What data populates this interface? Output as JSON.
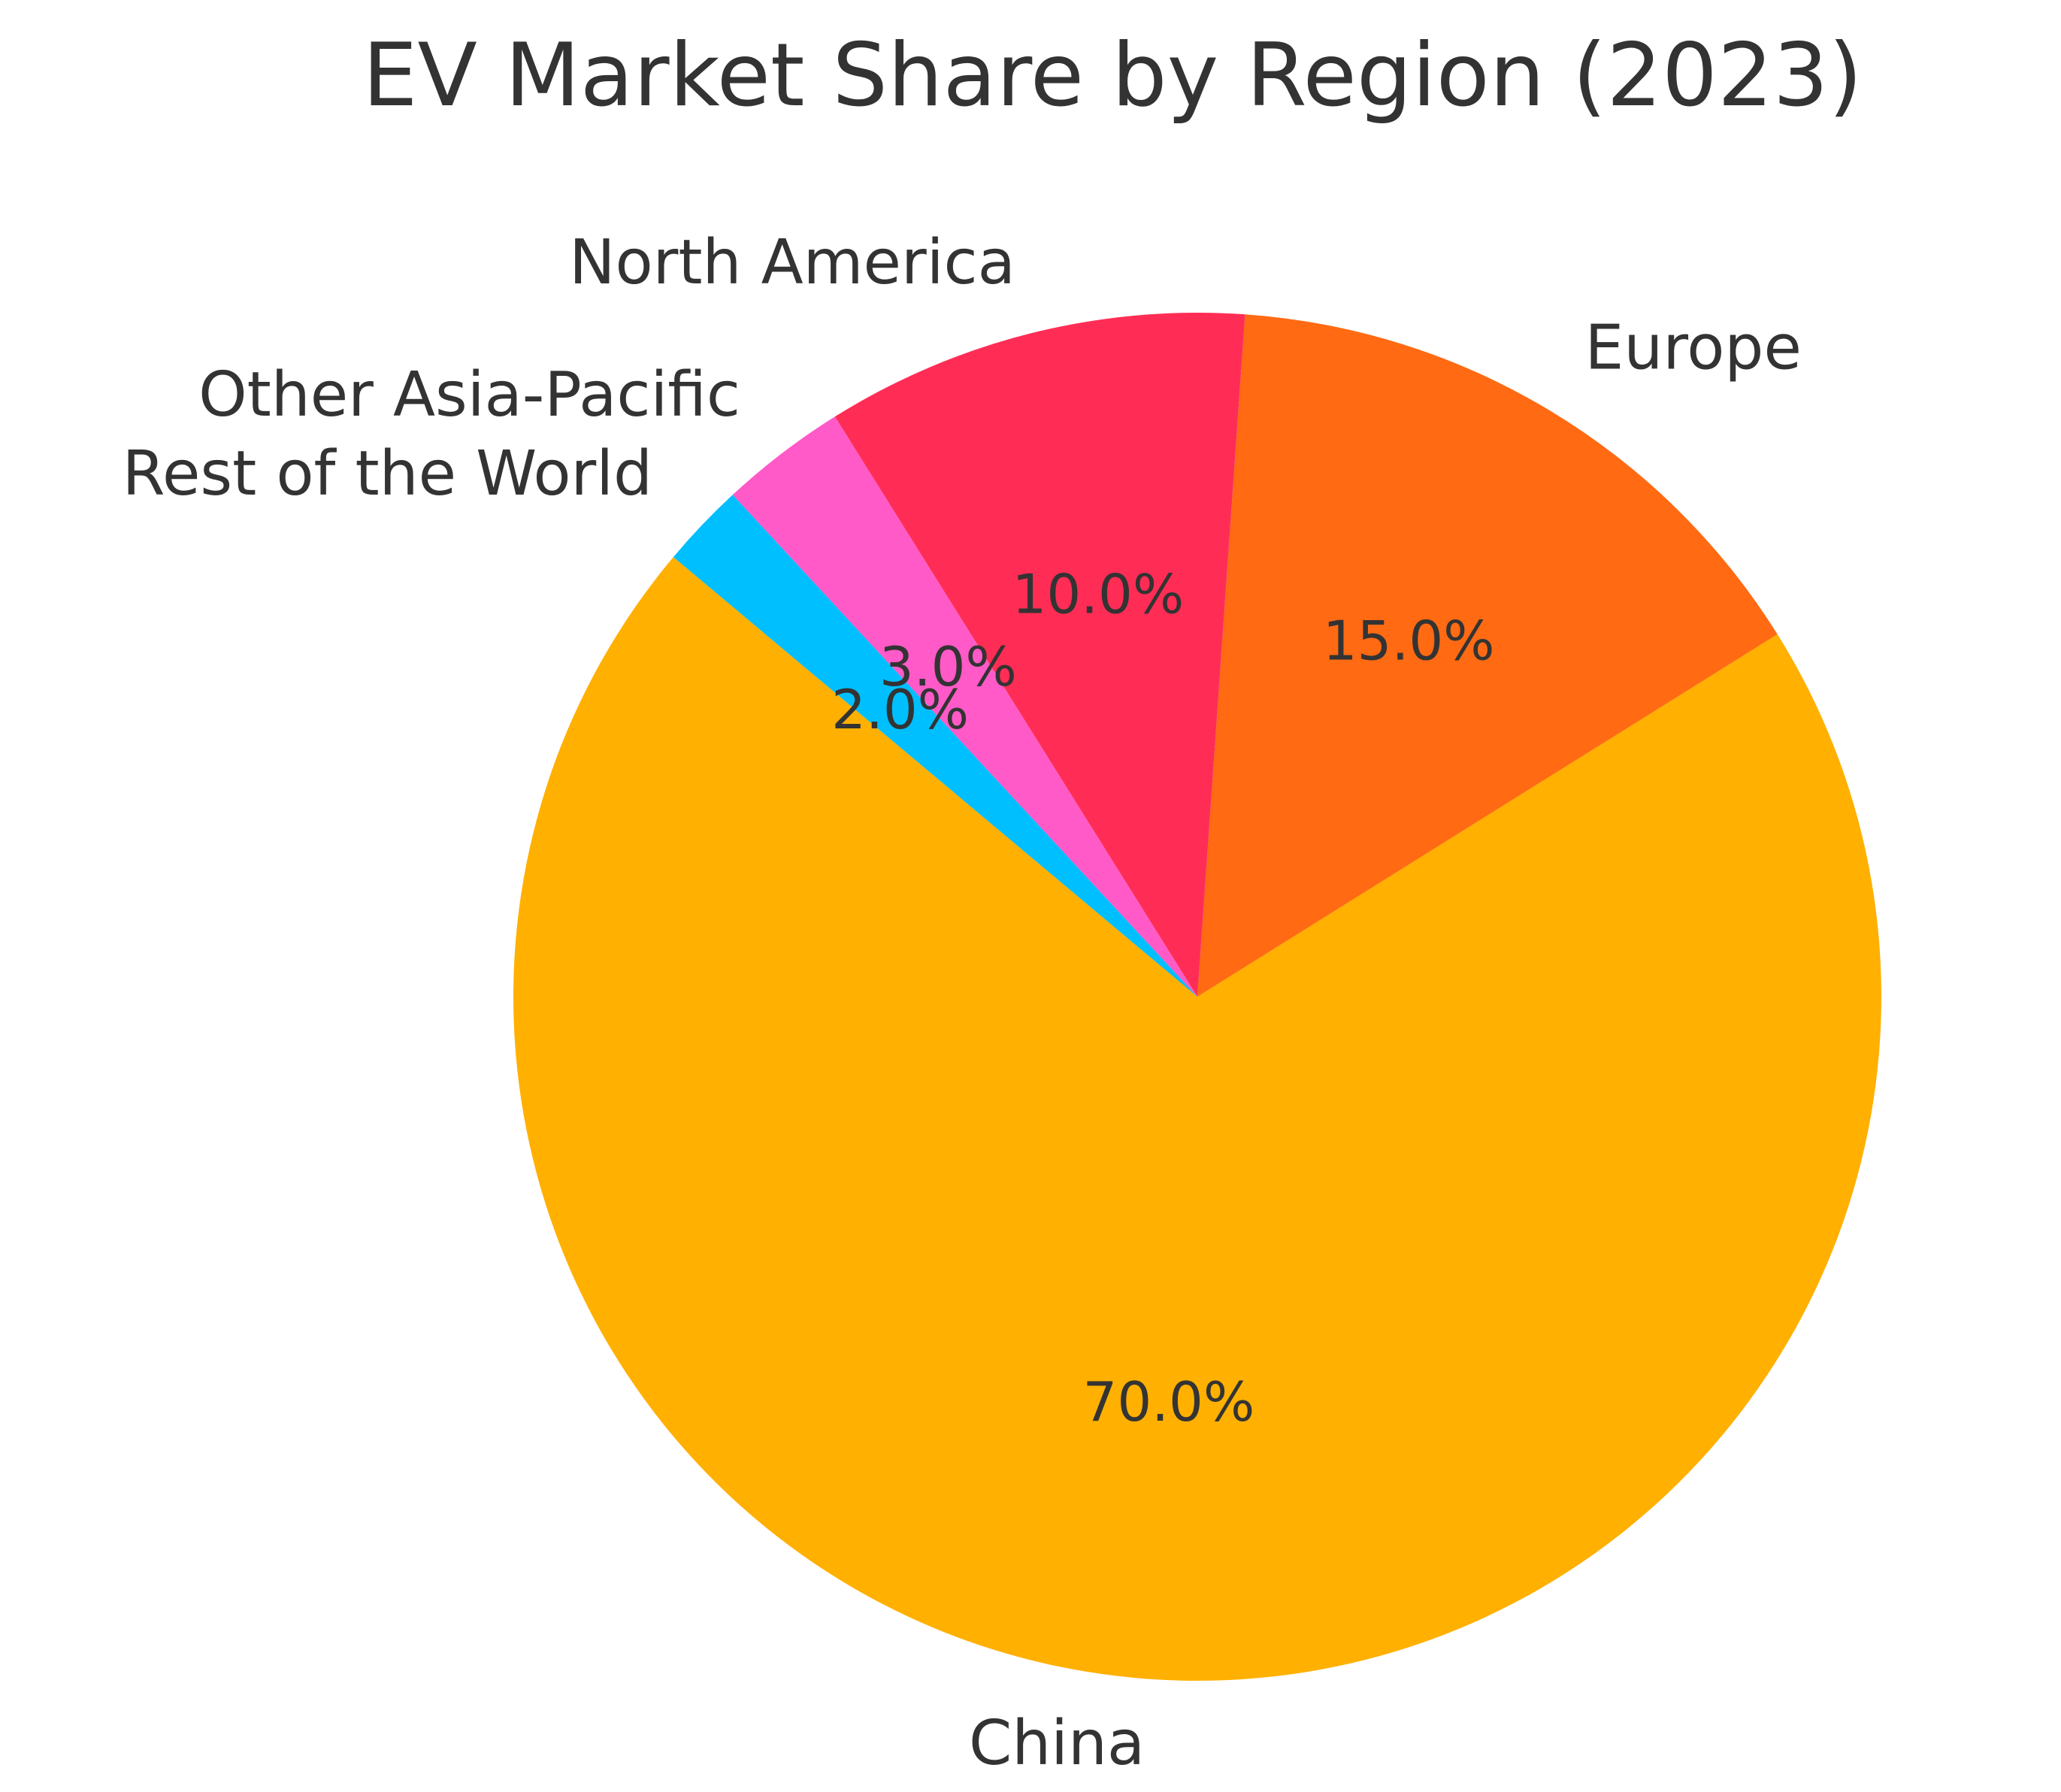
{
  "chart_data": {
    "type": "pie",
    "title": "EV Market Share by Region (2023)",
    "start_angle_deg": 140,
    "direction": "counterclockwise",
    "slices": [
      {
        "label": "China",
        "value": 70.0,
        "pct_label": "70.0%",
        "color": "#FFB000"
      },
      {
        "label": "Europe",
        "value": 15.0,
        "pct_label": "15.0%",
        "color": "#FF6A13"
      },
      {
        "label": "North America",
        "value": 10.0,
        "pct_label": "10.0%",
        "color": "#FF2D55"
      },
      {
        "label": "Other Asia-Pacific",
        "value": 3.0,
        "pct_label": "3.0%",
        "color": "#FF5AC8"
      },
      {
        "label": "Rest of the World",
        "value": 2.0,
        "pct_label": "2.0%",
        "color": "#00BFFF"
      }
    ]
  }
}
